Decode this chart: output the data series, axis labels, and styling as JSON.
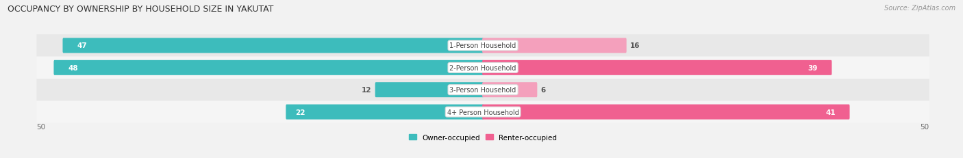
{
  "title": "OCCUPANCY BY OWNERSHIP BY HOUSEHOLD SIZE IN YAKUTAT",
  "source": "Source: ZipAtlas.com",
  "categories": [
    "1-Person Household",
    "2-Person Household",
    "3-Person Household",
    "4+ Person Household"
  ],
  "owner_values": [
    47,
    48,
    12,
    22
  ],
  "renter_values": [
    16,
    39,
    6,
    41
  ],
  "max_val": 50,
  "owner_color": "#3DBCBC",
  "renter_color": "#F06090",
  "renter_color_light": "#F4A0BC",
  "bg_color": "#f2f2f2",
  "row_colors": [
    "#e8e8e8",
    "#f5f5f5"
  ],
  "title_fontsize": 9,
  "bar_height": 0.52,
  "label_fontsize": 7.0,
  "value_fontsize": 7.5
}
